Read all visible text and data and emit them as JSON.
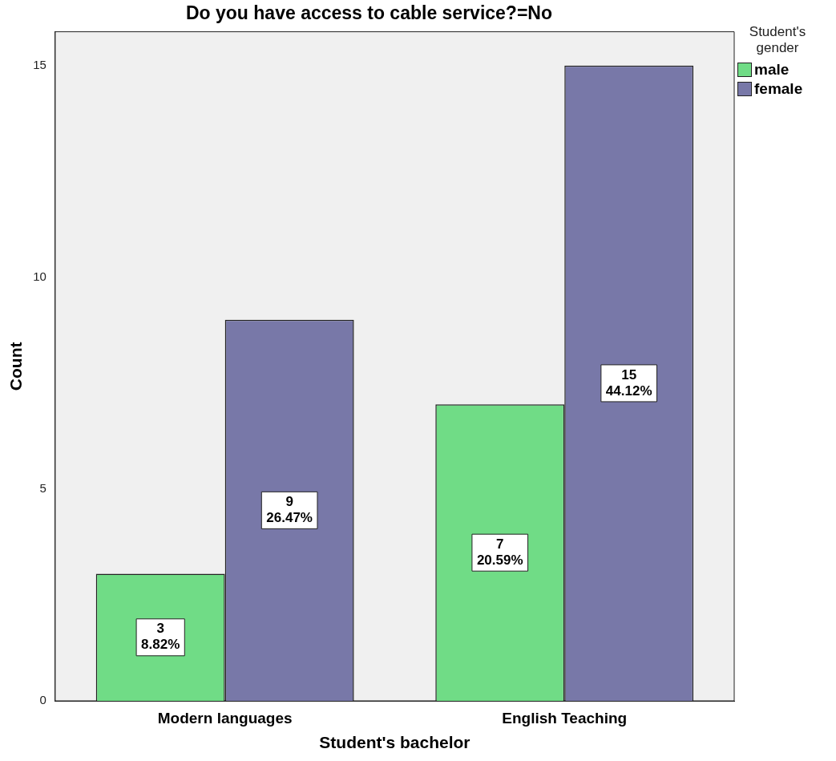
{
  "chart_data": {
    "type": "bar",
    "title": "Do you have access to cable service?=No",
    "xlabel": "Student's bachelor",
    "ylabel": "Count",
    "legend_title": "Student's gender",
    "categories": [
      "Modern languages",
      "English Teaching"
    ],
    "series": [
      {
        "name": "male",
        "color": "#70dc86",
        "values": [
          3,
          7
        ],
        "value_labels": [
          "3\n8.82%",
          "7\n20.59%"
        ]
      },
      {
        "name": "female",
        "color": "#7878a8",
        "values": [
          9,
          15
        ],
        "value_labels": [
          "9\n26.47%",
          "15\n44.12%"
        ]
      }
    ],
    "ylim": [
      0,
      15.8
    ],
    "yticks": [
      0,
      5,
      10,
      15
    ],
    "grid": false,
    "legend": "top right"
  }
}
